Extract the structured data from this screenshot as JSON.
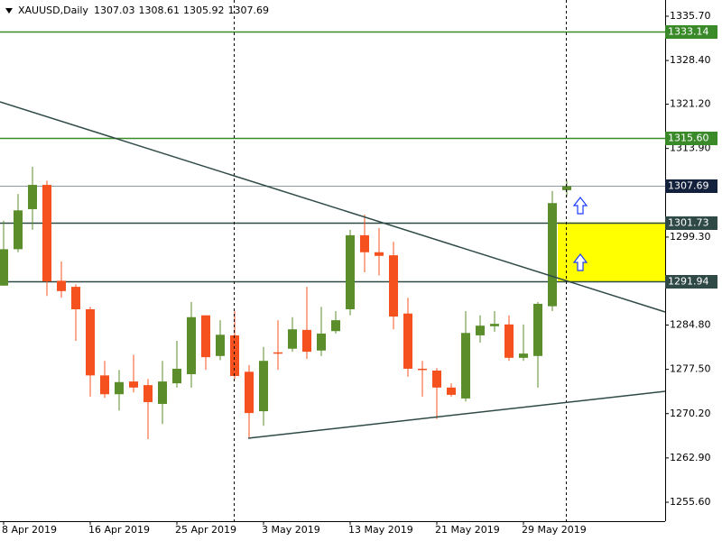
{
  "chart_data": {
    "type": "candlestick",
    "title": "XAUUSD,Daily",
    "categories": [
      "8 Apr 2019",
      null,
      null,
      null,
      null,
      null,
      "16 Apr 2019",
      null,
      null,
      null,
      null,
      null,
      "25 Apr 2019",
      null,
      null,
      null,
      null,
      null,
      "3 May 2019",
      null,
      null,
      null,
      null,
      null,
      "13 May 2019",
      null,
      null,
      null,
      null,
      null,
      "21 May 2019",
      null,
      null,
      null,
      null,
      null,
      "29 May 2019",
      null,
      null,
      null
    ],
    "open": [
      1291.3,
      1297.3,
      1303.9,
      1307.9,
      1292.1,
      1291.1,
      1287.4,
      1276.5,
      1273.4,
      1275.5,
      1274.9,
      1271.8,
      1275.2,
      1276.7,
      1286.4,
      1279.7,
      1283.1,
      1277.1,
      1270.6,
      1280.3,
      1280.9,
      1284.0,
      1280.6,
      1283.8,
      1287.4,
      1299.6,
      1296.8,
      1296.3,
      1286.7,
      1277.6,
      1277.3,
      1274.5,
      1272.7,
      1283.1,
      1284.6,
      1284.9,
      1279.4,
      1279.7,
      1287.9,
      1307.03
    ],
    "high": [
      1302.0,
      1306.4,
      1310.9,
      1308.6,
      1295.3,
      1291.5,
      1287.8,
      1278.9,
      1277.4,
      1279.9,
      1275.9,
      1278.9,
      1282.2,
      1288.6,
      1286.4,
      1285.6,
      1287.1,
      1278.2,
      1281.2,
      1285.6,
      1286.1,
      1291.1,
      1287.8,
      1287.1,
      1300.5,
      1303.0,
      1300.8,
      1298.5,
      1289.3,
      1278.9,
      1277.7,
      1275.2,
      1287.1,
      1286.4,
      1287.1,
      1286.4,
      1284.9,
      1288.6,
      1306.9,
      1308.61
    ],
    "low": [
      1291.3,
      1296.8,
      1300.5,
      1289.6,
      1289.3,
      1282.2,
      1273.0,
      1272.8,
      1270.7,
      1273.7,
      1266.0,
      1268.5,
      1274.5,
      1274.5,
      1277.4,
      1279.0,
      1275.9,
      1266.3,
      1268.2,
      1277.4,
      1280.4,
      1279.2,
      1279.7,
      1283.4,
      1286.4,
      1293.5,
      1293.0,
      1284.1,
      1276.3,
      1273.0,
      1269.3,
      1273.0,
      1272.2,
      1281.9,
      1283.7,
      1278.9,
      1278.9,
      1274.5,
      1287.1,
      1305.92
    ],
    "close": [
      1297.3,
      1303.7,
      1307.9,
      1292.0,
      1290.4,
      1287.4,
      1276.5,
      1273.4,
      1275.4,
      1274.5,
      1272.1,
      1275.5,
      1277.6,
      1286.1,
      1279.5,
      1283.2,
      1276.4,
      1270.3,
      1278.9,
      1280.1,
      1284.1,
      1280.4,
      1283.4,
      1285.6,
      1299.6,
      1296.8,
      1296.2,
      1286.2,
      1277.6,
      1277.5,
      1274.5,
      1273.3,
      1283.5,
      1284.7,
      1285.0,
      1279.4,
      1280.1,
      1288.3,
      1304.9,
      1307.69
    ],
    "up_color": "#5b8e2b",
    "down_color": "#f4511e",
    "ylim": [
      1252.48,
      1338.37
    ],
    "yticks": [
      {
        "value": 1335.7,
        "label": "1335.70"
      },
      {
        "value": 1328.4,
        "label": "1328.40"
      },
      {
        "value": 1321.2,
        "label": "1321.20"
      },
      {
        "value": 1313.9,
        "label": "1313.90"
      },
      {
        "value": 1299.3,
        "label": "1299.30"
      },
      {
        "value": 1284.8,
        "label": "1284.80"
      },
      {
        "value": 1277.5,
        "label": "1277.50"
      },
      {
        "value": 1270.2,
        "label": "1270.20"
      },
      {
        "value": 1262.9,
        "label": "1262.90"
      },
      {
        "value": 1255.6,
        "label": "1255.60"
      }
    ],
    "levels": [
      {
        "value": 1333.14,
        "label": "1333.14",
        "color": "#3b8a2a"
      },
      {
        "value": 1315.6,
        "label": "1315.60",
        "color": "#3b8a2a"
      },
      {
        "value": 1307.69,
        "label": "1307.69",
        "color": "#14213d"
      },
      {
        "value": 1301.73,
        "label": "1301.73",
        "color": "#2f4a46"
      },
      {
        "value": 1291.94,
        "label": "1291.94",
        "color": "#2f4a46"
      }
    ],
    "grid": false
  }
}
